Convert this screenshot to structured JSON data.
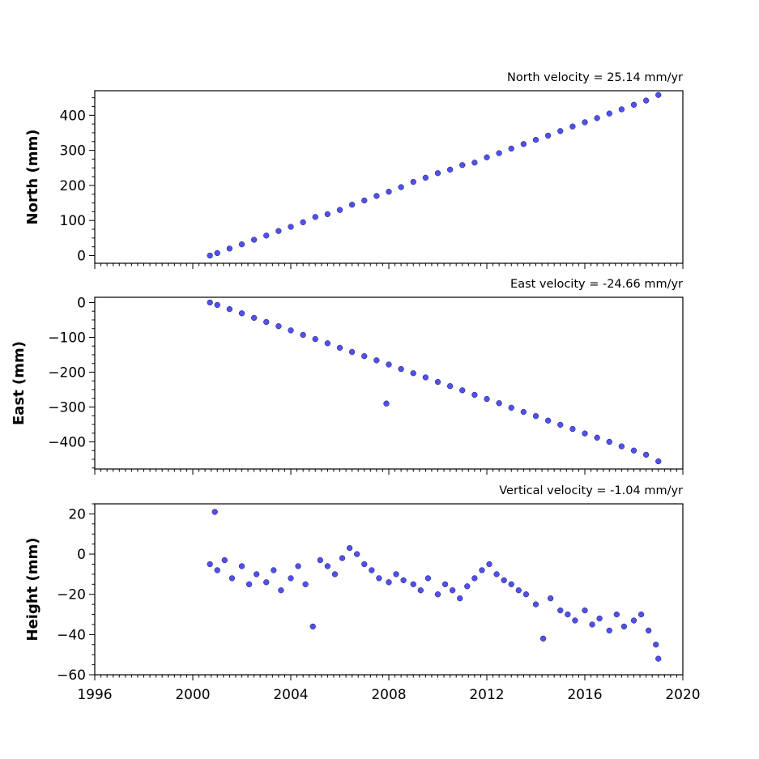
{
  "chart_data": [
    {
      "type": "scatter",
      "annotation": "North velocity = 25.14 mm/yr",
      "ylabel": "North (mm)",
      "xlim": [
        1996,
        2020
      ],
      "ylim": [
        -22,
        470
      ],
      "x_ticks": [
        1996,
        2000,
        2004,
        2008,
        2012,
        2016,
        2020
      ],
      "y_ticks": [
        0,
        100,
        200,
        300,
        400
      ],
      "y_tick_labels": [
        "0",
        "100",
        "200",
        "300",
        "400"
      ],
      "point_color": "#5050f0",
      "edge_color": "#1a1a55",
      "series": [
        {
          "x": [
            2000.7,
            2001.0,
            2001.5,
            2002.0,
            2002.5,
            2003.0,
            2003.5,
            2004.0,
            2004.5,
            2005.0,
            2005.5,
            2006.0,
            2006.5,
            2007.0,
            2007.5,
            2008.0,
            2008.5,
            2009.0,
            2009.5,
            2010.0,
            2010.5,
            2011.0,
            2011.5,
            2012.0,
            2012.5,
            2013.0,
            2013.5,
            2014.0,
            2014.5,
            2015.0,
            2015.5,
            2016.0,
            2016.5,
            2017.0,
            2017.5,
            2018.0,
            2018.5,
            2019.0
          ],
          "y": [
            0,
            7,
            20,
            32,
            45,
            57,
            70,
            82,
            95,
            110,
            118,
            130,
            145,
            157,
            170,
            182,
            195,
            210,
            222,
            235,
            245,
            258,
            265,
            280,
            292,
            305,
            318,
            330,
            342,
            355,
            368,
            380,
            392,
            405,
            417,
            430,
            442,
            458
          ]
        }
      ]
    },
    {
      "type": "scatter",
      "annotation": "East velocity = -24.66 mm/yr",
      "ylabel": "East (mm)",
      "xlim": [
        1996,
        2020
      ],
      "ylim": [
        -478,
        15
      ],
      "x_ticks": [
        1996,
        2000,
        2004,
        2008,
        2012,
        2016,
        2020
      ],
      "y_ticks": [
        0,
        -100,
        -200,
        -300,
        -400
      ],
      "y_tick_labels": [
        "0",
        "−100",
        "−200",
        "−300",
        "−400"
      ],
      "point_color": "#5050f0",
      "edge_color": "#1a1a55",
      "series": [
        {
          "x": [
            2000.7,
            2001.0,
            2001.5,
            2002.0,
            2002.5,
            2003.0,
            2003.5,
            2004.0,
            2004.5,
            2005.0,
            2005.5,
            2006.0,
            2006.5,
            2007.0,
            2007.5,
            2007.9,
            2008.0,
            2008.5,
            2009.0,
            2009.5,
            2010.0,
            2010.5,
            2011.0,
            2011.5,
            2012.0,
            2012.5,
            2013.0,
            2013.5,
            2014.0,
            2014.5,
            2015.0,
            2015.5,
            2016.0,
            2016.5,
            2017.0,
            2017.5,
            2018.0,
            2018.5,
            2019.0
          ],
          "y": [
            0,
            -7,
            -19,
            -31,
            -44,
            -56,
            -68,
            -80,
            -93,
            -105,
            -117,
            -130,
            -142,
            -154,
            -166,
            -290,
            -178,
            -191,
            -203,
            -215,
            -228,
            -240,
            -252,
            -265,
            -277,
            -289,
            -302,
            -314,
            -326,
            -339,
            -351,
            -363,
            -376,
            -388,
            -400,
            -413,
            -425,
            -437,
            -456
          ]
        }
      ]
    },
    {
      "type": "scatter",
      "annotation": "Vertical velocity = -1.04 mm/yr",
      "ylabel": "Height (mm)",
      "xlabel": "",
      "xlim": [
        1996,
        2020
      ],
      "ylim": [
        -60,
        25
      ],
      "x_ticks": [
        1996,
        2000,
        2004,
        2008,
        2012,
        2016,
        2020
      ],
      "x_tick_labels": [
        "1996",
        "2000",
        "2004",
        "2008",
        "2012",
        "2016",
        "2020"
      ],
      "y_ticks": [
        20,
        0,
        -20,
        -40,
        -60
      ],
      "y_tick_labels": [
        "20",
        "0",
        "−20",
        "−40",
        "−60"
      ],
      "point_color": "#5050f0",
      "edge_color": "#1a1a55",
      "series": [
        {
          "x": [
            2000.7,
            2000.9,
            2001.0,
            2001.3,
            2001.6,
            2002.0,
            2002.3,
            2002.6,
            2003.0,
            2003.3,
            2003.6,
            2004.0,
            2004.3,
            2004.6,
            2004.9,
            2005.2,
            2005.5,
            2005.8,
            2006.1,
            2006.4,
            2006.7,
            2007.0,
            2007.3,
            2007.6,
            2008.0,
            2008.3,
            2008.6,
            2009.0,
            2009.3,
            2009.6,
            2010.0,
            2010.3,
            2010.6,
            2010.9,
            2011.2,
            2011.5,
            2011.8,
            2012.1,
            2012.4,
            2012.7,
            2013.0,
            2013.3,
            2013.6,
            2014.0,
            2014.3,
            2014.6,
            2015.0,
            2015.3,
            2015.6,
            2016.0,
            2016.3,
            2016.6,
            2017.0,
            2017.3,
            2017.6,
            2018.0,
            2018.3,
            2018.6,
            2018.9,
            2019.0
          ],
          "y": [
            -5,
            21,
            -8,
            -3,
            -12,
            -6,
            -15,
            -10,
            -14,
            -8,
            -18,
            -12,
            -6,
            -15,
            -36,
            -3,
            -6,
            -10,
            -2,
            3,
            0,
            -5,
            -8,
            -12,
            -14,
            -10,
            -13,
            -15,
            -18,
            -12,
            -20,
            -15,
            -18,
            -22,
            -16,
            -12,
            -8,
            -5,
            -10,
            -13,
            -15,
            -18,
            -20,
            -25,
            -42,
            -22,
            -28,
            -30,
            -33,
            -28,
            -35,
            -32,
            -38,
            -30,
            -36,
            -33,
            -30,
            -38,
            -45,
            -52
          ]
        }
      ]
    }
  ]
}
